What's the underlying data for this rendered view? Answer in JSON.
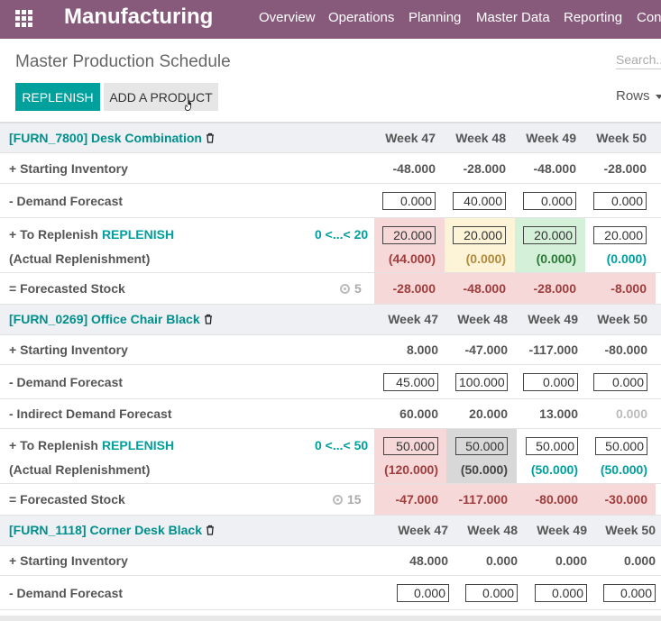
{
  "navbar": {
    "brand": "Manufacturing",
    "menu": [
      "Overview",
      "Operations",
      "Planning",
      "Master Data",
      "Reporting",
      "Conf"
    ]
  },
  "control_panel": {
    "title": "Master Production Schedule",
    "search_placeholder": "Search...",
    "replenish_label": "REPLENISH",
    "add_product_label": "ADD A PRODUCT",
    "rows_label": "Rows"
  },
  "colors": {
    "navbar": "#875a7b",
    "accent": "#00a09d",
    "negative_bg": "#f6d8d8",
    "warning_bg": "#fdf3d6",
    "ok_bg": "#d4f0d8"
  },
  "products": [
    {
      "name": "[FURN_7800] Desk Combination",
      "weeks": [
        "Week 47",
        "Week 48",
        "Week 49",
        "Week 50"
      ],
      "rows": {
        "starting_inventory": {
          "label": "+ Starting Inventory",
          "values": [
            "-48.000",
            "-28.000",
            "-48.000",
            "-28.000"
          ]
        },
        "demand_forecast": {
          "label": "- Demand Forecast",
          "values": [
            "0.000",
            "40.000",
            "0.000",
            "0.000"
          ]
        },
        "to_replenish": {
          "label": "+ To Replenish",
          "link": "REPLENISH",
          "bounds": "0 <...< 20",
          "values": [
            "20.000",
            "20.000",
            "20.000",
            "20.000"
          ]
        },
        "actual_replenishment": {
          "label": "(Actual Replenishment)",
          "values": [
            "(44.000)",
            "(0.000)",
            "(0.000)",
            "(0.000)"
          ]
        },
        "forecasted_stock": {
          "label": "= Forecasted Stock",
          "route_count": "5",
          "values": [
            "-28.000",
            "-48.000",
            "-28.000",
            "-8.000"
          ]
        }
      }
    },
    {
      "name": "[FURN_0269] Office Chair Black",
      "weeks": [
        "Week 47",
        "Week 48",
        "Week 49",
        "Week 50"
      ],
      "rows": {
        "starting_inventory": {
          "label": "+ Starting Inventory",
          "values": [
            "8.000",
            "-47.000",
            "-117.000",
            "-80.000"
          ]
        },
        "demand_forecast": {
          "label": "- Demand Forecast",
          "values": [
            "45.000",
            "100.000",
            "0.000",
            "0.000"
          ]
        },
        "indirect_demand": {
          "label": "- Indirect Demand Forecast",
          "values": [
            "60.000",
            "20.000",
            "13.000",
            "0.000"
          ]
        },
        "to_replenish": {
          "label": "+ To Replenish",
          "link": "REPLENISH",
          "bounds": "0 <...< 50",
          "values": [
            "50.000",
            "50.000",
            "50.000",
            "50.000"
          ]
        },
        "actual_replenishment": {
          "label": "(Actual Replenishment)",
          "values": [
            "(120.000)",
            "(50.000)",
            "(50.000)",
            "(50.000)"
          ]
        },
        "forecasted_stock": {
          "label": "= Forecasted Stock",
          "route_count": "15",
          "values": [
            "-47.000",
            "-117.000",
            "-80.000",
            "-30.000"
          ]
        }
      }
    },
    {
      "name": "[FURN_1118] Corner Desk Black",
      "weeks": [
        "Week 47",
        "Week 48",
        "Week 49",
        "Week 50"
      ],
      "rows": {
        "starting_inventory": {
          "label": "+ Starting Inventory",
          "values": [
            "48.000",
            "0.000",
            "0.000",
            "0.000"
          ]
        },
        "demand_forecast": {
          "label": "- Demand Forecast",
          "values": [
            "0.000",
            "0.000",
            "0.000",
            "0.000"
          ]
        }
      }
    }
  ]
}
